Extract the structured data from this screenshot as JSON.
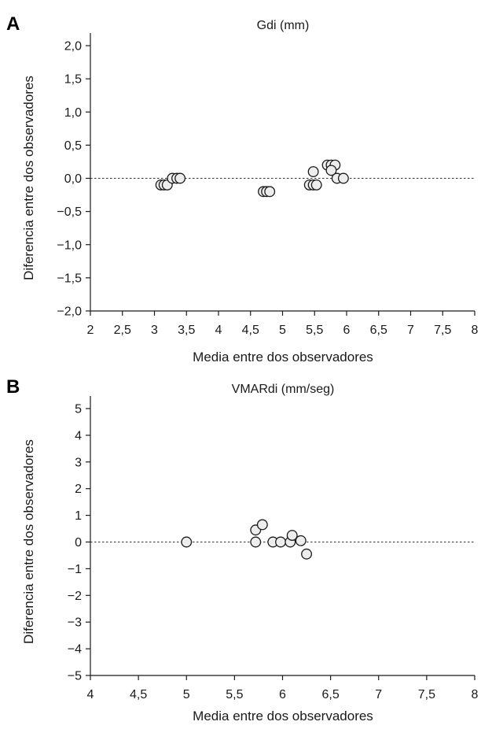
{
  "chart_data": [
    {
      "panel": "A",
      "type": "scatter",
      "title": "Gdi (mm)",
      "xlabel": "Media entre dos observadores",
      "ylabel": "Diferencia entre dos observadores",
      "xlim": [
        2,
        8
      ],
      "ylim": [
        -2.0,
        2.0
      ],
      "xticks": [
        "2",
        "2,5",
        "3",
        "3,5",
        "4",
        "4,5",
        "5",
        "5,5",
        "6",
        "6,5",
        "7",
        "7,5",
        "8"
      ],
      "yticks": [
        "2,0",
        "1,5",
        "1,0",
        "0,5",
        "0,0",
        "−0,5",
        "−1,0",
        "−1,5",
        "−2,0"
      ],
      "reference_line_y": 0,
      "points": [
        {
          "x": 3.1,
          "y": -0.1
        },
        {
          "x": 3.15,
          "y": -0.1
        },
        {
          "x": 3.2,
          "y": -0.1
        },
        {
          "x": 3.28,
          "y": 0.0
        },
        {
          "x": 3.35,
          "y": 0.0
        },
        {
          "x": 3.4,
          "y": 0.0
        },
        {
          "x": 4.7,
          "y": -0.2
        },
        {
          "x": 4.75,
          "y": -0.2
        },
        {
          "x": 4.8,
          "y": -0.2
        },
        {
          "x": 5.42,
          "y": -0.1
        },
        {
          "x": 5.48,
          "y": -0.1
        },
        {
          "x": 5.53,
          "y": -0.1
        },
        {
          "x": 5.48,
          "y": 0.1
        },
        {
          "x": 5.7,
          "y": 0.2
        },
        {
          "x": 5.76,
          "y": 0.2
        },
        {
          "x": 5.82,
          "y": 0.2
        },
        {
          "x": 5.76,
          "y": 0.12
        },
        {
          "x": 5.85,
          "y": 0.0
        },
        {
          "x": 5.95,
          "y": 0.0
        }
      ]
    },
    {
      "panel": "B",
      "type": "scatter",
      "title": "VMARdi (mm/seg)",
      "xlabel": "Media entre dos observadores",
      "ylabel": "Diferencia entre dos observadores",
      "xlim": [
        4,
        8
      ],
      "ylim": [
        -5,
        5
      ],
      "xticks": [
        "4",
        "4,5",
        "5",
        "5,5",
        "6",
        "6,5",
        "7",
        "7,5",
        "8"
      ],
      "yticks": [
        "5",
        "4",
        "3",
        "2",
        "1",
        "0",
        "−1",
        "−2",
        "−3",
        "−4",
        "−5"
      ],
      "reference_line_y": 0,
      "points": [
        {
          "x": 5.0,
          "y": 0.0
        },
        {
          "x": 5.72,
          "y": 0.45
        },
        {
          "x": 5.72,
          "y": 0.0
        },
        {
          "x": 5.79,
          "y": 0.65
        },
        {
          "x": 5.9,
          "y": 0.0
        },
        {
          "x": 5.98,
          "y": 0.0
        },
        {
          "x": 6.08,
          "y": 0.0
        },
        {
          "x": 6.1,
          "y": 0.25
        },
        {
          "x": 6.19,
          "y": 0.05
        },
        {
          "x": 6.25,
          "y": -0.45
        }
      ]
    }
  ]
}
